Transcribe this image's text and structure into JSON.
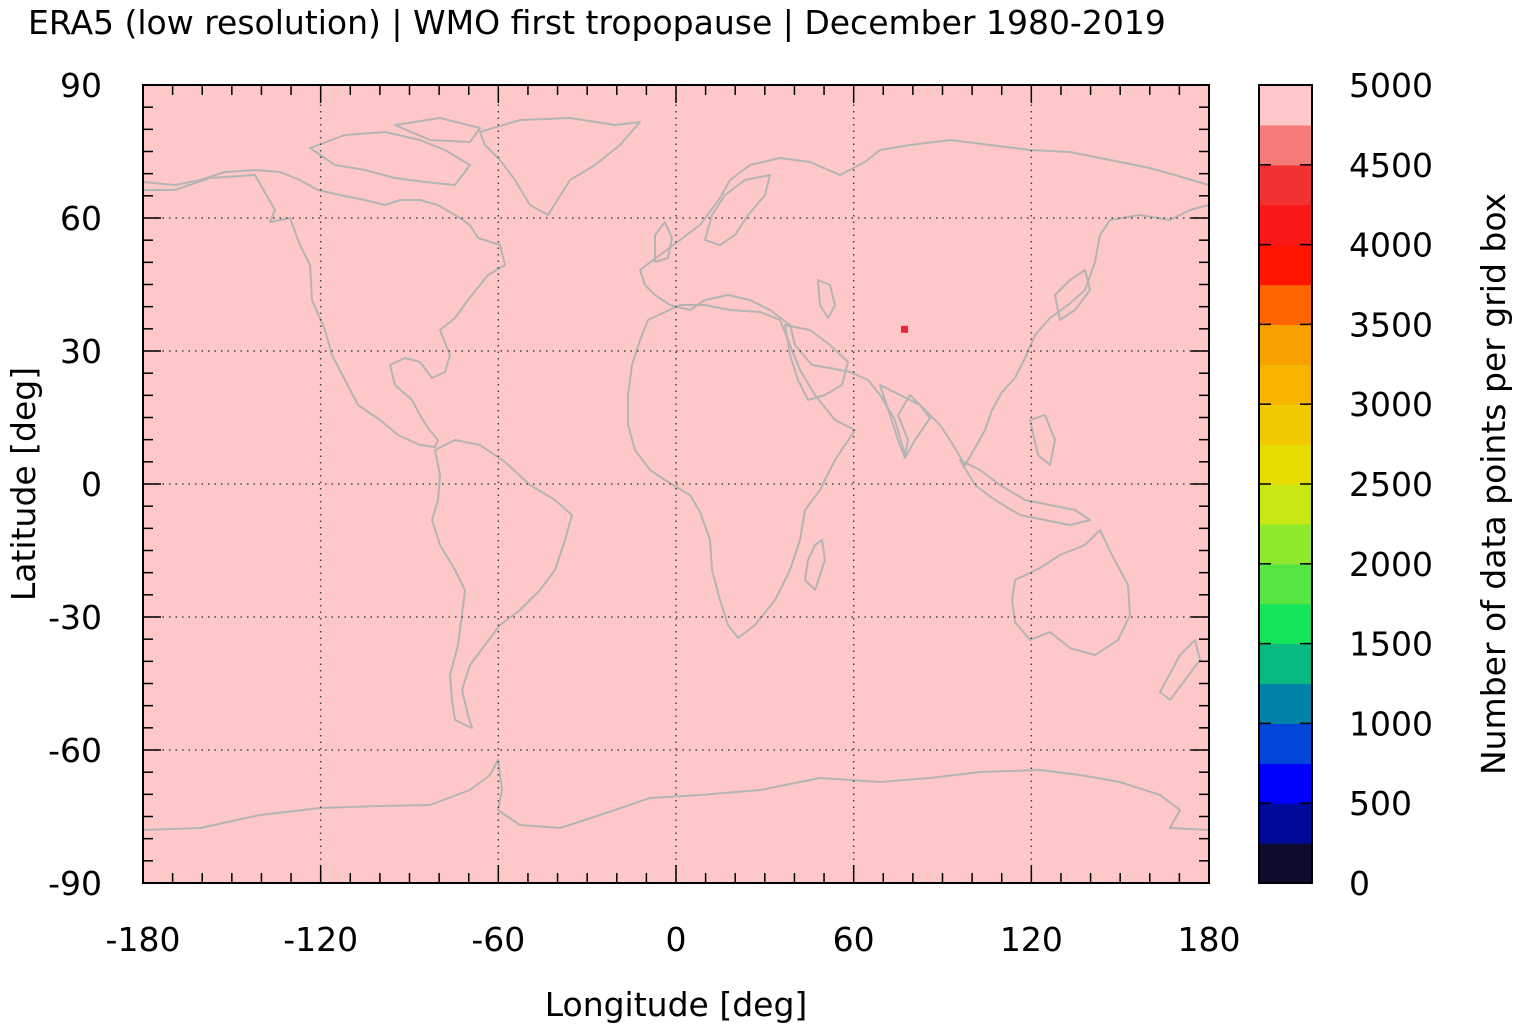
{
  "title": "ERA5 (low resolution) | WMO first tropopause | December 1980-2019",
  "chart_data": {
    "type": "heatmap",
    "title": "ERA5 (low resolution) | WMO first tropopause | December 1980-2019",
    "xlabel": "Longitude [deg]",
    "ylabel": "Latitude [deg]",
    "xlim": [
      -180,
      180
    ],
    "ylim": [
      -90,
      90
    ],
    "x_ticks": [
      -180,
      -120,
      -60,
      0,
      60,
      120,
      180
    ],
    "y_ticks": [
      -90,
      -60,
      -30,
      0,
      30,
      60,
      90
    ],
    "x_tick_labels": [
      "-180",
      "-120",
      "-60",
      "0",
      "60",
      "120",
      "180"
    ],
    "y_tick_labels": [
      "-90",
      "-60",
      "-30",
      "0",
      "30",
      "60",
      "90"
    ],
    "grid": true,
    "background_value": 5000,
    "anomaly": {
      "lon": 77,
      "lat": 35,
      "value": 4200
    },
    "coastlines": true,
    "colorbar": {
      "label": "Number of data points per grid box",
      "min": 0,
      "max": 5000,
      "step": 250,
      "tick_values": [
        0,
        500,
        1000,
        1500,
        2000,
        2500,
        3000,
        3500,
        4000,
        4500,
        5000
      ],
      "tick_labels": [
        "0",
        "500",
        "1000",
        "1500",
        "2000",
        "2500",
        "3000",
        "3500",
        "4000",
        "4500",
        "5000"
      ],
      "colors": [
        "#0c0c2e",
        "#000a9a",
        "#0000ff",
        "#0046d8",
        "#0082a8",
        "#08b982",
        "#14e45a",
        "#56e644",
        "#8ee82c",
        "#c8e614",
        "#e6dc00",
        "#f2c800",
        "#f6b400",
        "#f8a000",
        "#ff6400",
        "#ff1400",
        "#f81818",
        "#f23232",
        "#f57a7a",
        "#ffc8c8"
      ]
    }
  }
}
